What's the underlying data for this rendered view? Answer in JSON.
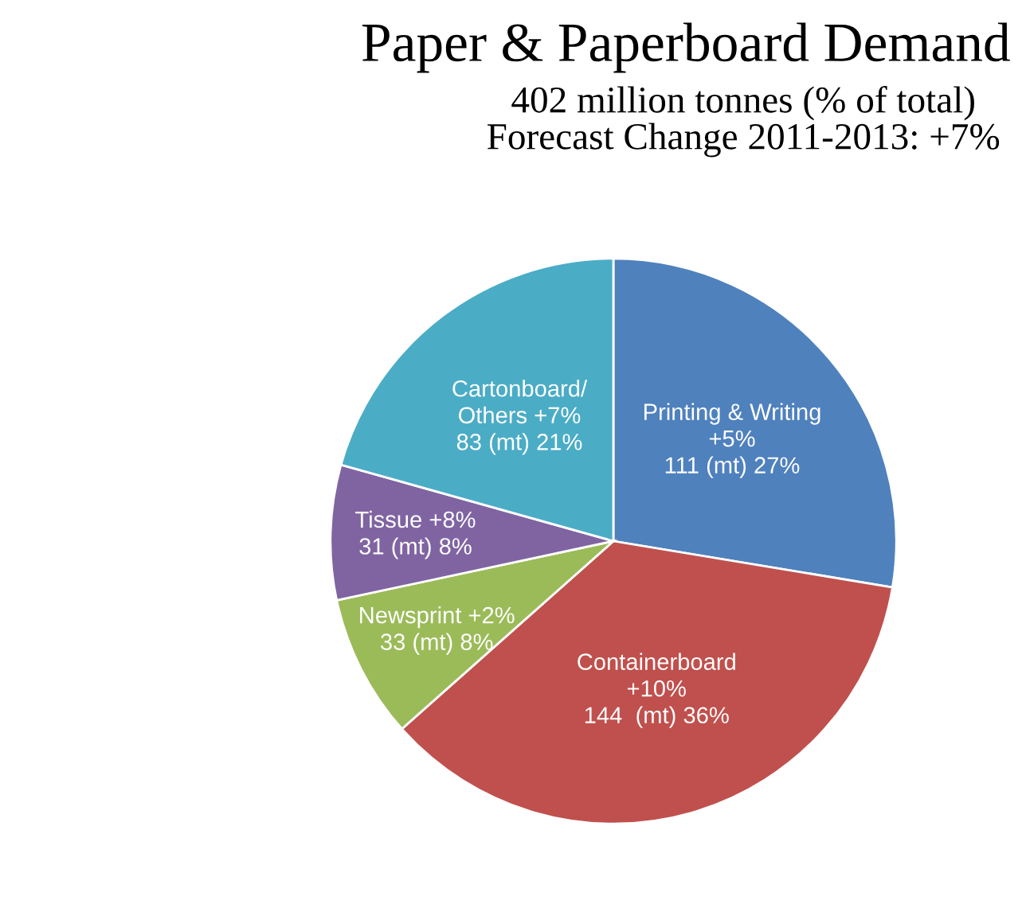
{
  "chart_data": {
    "type": "pie",
    "title": "Paper & Paperboard Demand",
    "subtitle": "402 million tonnes (% of total)\nForecast Change 2011-2013: +7%",
    "categories": [
      "Printing & Writing\n+5%",
      "Containerboard\n+10%",
      "Newsprint +2%",
      "Tissue +8%",
      "Cartonboard/\nOthers +7%"
    ],
    "values": [
      111,
      144,
      33,
      31,
      83
    ],
    "value_labels": [
      "111 (mt) 27%",
      "144  (mt) 36%",
      "33 (mt) 8%",
      "31 (mt) 8%",
      "83 (mt) 21%"
    ],
    "colors": [
      "#4f81bd",
      "#c0504d",
      "#9bbb59",
      "#8064a2",
      "#4bacc6"
    ],
    "legend": false
  }
}
